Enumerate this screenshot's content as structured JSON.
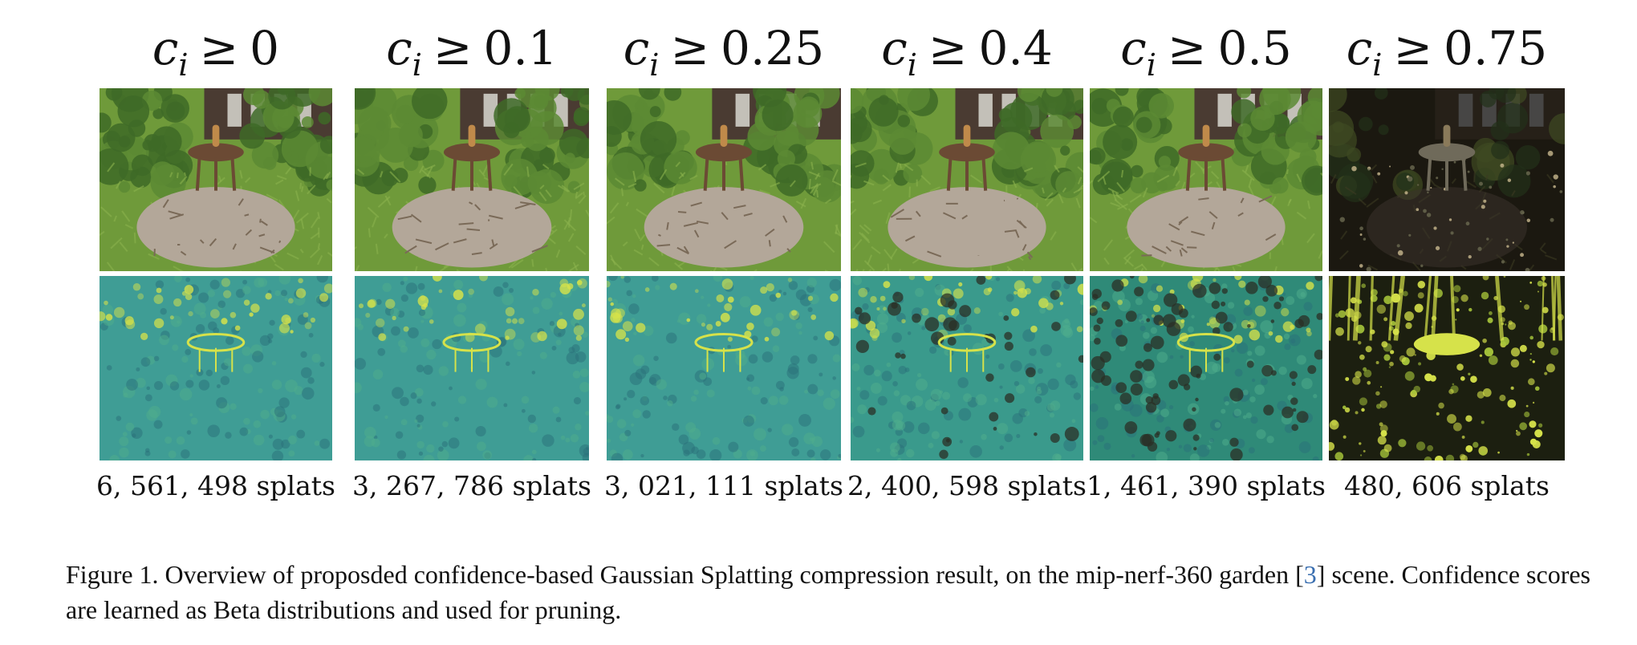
{
  "panels": [
    {
      "var": "c",
      "sub": "i",
      "op": "≥",
      "threshold": "0",
      "count": "6, 561, 498 splats",
      "mode": "dense"
    },
    {
      "var": "c",
      "sub": "i",
      "op": "≥",
      "threshold": "0.1",
      "count": "3, 267, 786 splats",
      "mode": "dense"
    },
    {
      "var": "c",
      "sub": "i",
      "op": "≥",
      "threshold": "0.25",
      "count": "3, 021, 111 splats",
      "mode": "dense"
    },
    {
      "var": "c",
      "sub": "i",
      "op": "≥",
      "threshold": "0.4",
      "count": "2, 400, 598 splats",
      "mode": "medium"
    },
    {
      "var": "c",
      "sub": "i",
      "op": "≥",
      "threshold": "0.5",
      "count": "1, 461, 390 splats",
      "mode": "sparse"
    },
    {
      "var": "c",
      "sub": "i",
      "op": "≥",
      "threshold": "0.75",
      "count": "480, 606 splats",
      "mode": "very-sparse"
    }
  ],
  "caption": {
    "prefix": "Figure 1. Overview of proposded confidence-based Gaussian Splatting compression result, on the mip-nerf-360 garden [",
    "ref": "3",
    "suffix": "] scene. Confidence scores are learned as Beta distributions and used for pruning."
  },
  "colors": {
    "grass": "#6f9a3a",
    "foliage": "#3e6a27",
    "patio": "#b3a799",
    "table": "#6b4a34",
    "house": "#4a3b32",
    "map_base": "#3f9d95",
    "map_high": "#d6e24a",
    "map_dark": "#2b2f25",
    "ref_link": "#3a6fb0"
  }
}
